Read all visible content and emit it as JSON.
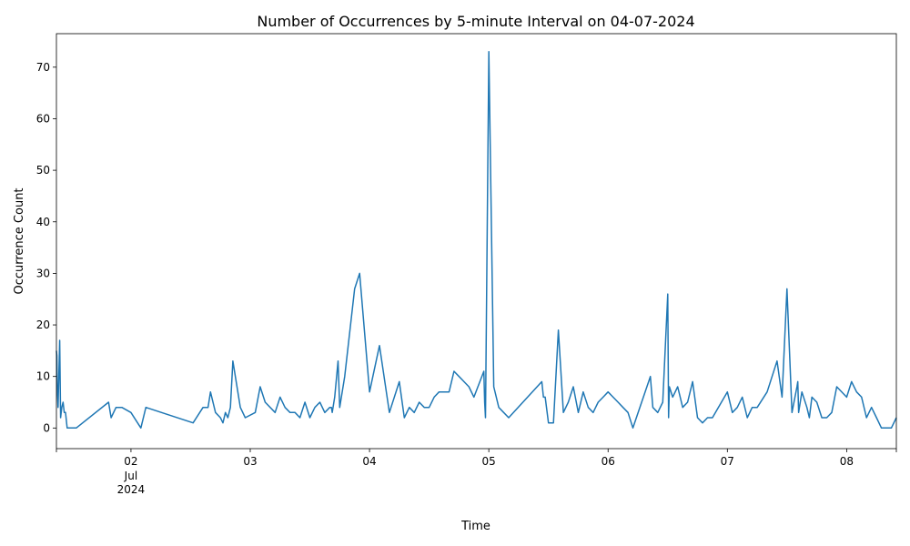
{
  "chart_data": {
    "type": "line",
    "title": "Number of Occurrences by 5-minute Interval on 04-07-2024",
    "xlabel": "Time",
    "ylabel": "Occurrence Count",
    "xlim": [
      "2024-07-01 09:00",
      "2024-07-08 10:00"
    ],
    "ylim": [
      -4,
      76.5
    ],
    "y_ticks": [
      0,
      10,
      20,
      30,
      40,
      50,
      60,
      70
    ],
    "x_ticks": [
      {
        "x": "2024-07-02",
        "label": "02",
        "sublabel": [
          "Jul",
          "2024"
        ]
      },
      {
        "x": "2024-07-03",
        "label": "03"
      },
      {
        "x": "2024-07-04",
        "label": "04"
      },
      {
        "x": "2024-07-05",
        "label": "05"
      },
      {
        "x": "2024-07-06",
        "label": "06"
      },
      {
        "x": "2024-07-07",
        "label": "07"
      },
      {
        "x": "2024-07-08",
        "label": "08"
      }
    ],
    "grid": false,
    "line_color": "#1f77b4",
    "series": [
      {
        "x": [
          "2024-07-01 09:00",
          "2024-07-01 09:05",
          "2024-07-01 09:10",
          "2024-07-01 09:20",
          "2024-07-01 09:40",
          "2024-07-01 09:50",
          "2024-07-01 10:05",
          "2024-07-01 10:20",
          "2024-07-01 10:35",
          "2024-07-01 10:50",
          "2024-07-01 11:10",
          "2024-07-01 11:30",
          "2024-07-01 12:00",
          "2024-07-01 12:30",
          "2024-07-01 13:00",
          "2024-07-01 19:30",
          "2024-07-01 20:00",
          "2024-07-01 21:00",
          "2024-07-01 22:10",
          "2024-07-02 00:00",
          "2024-07-02 02:00",
          "2024-07-02 03:00",
          "2024-07-02 12:30",
          "2024-07-02 14:30",
          "2024-07-02 15:30",
          "2024-07-02 16:00",
          "2024-07-02 17:00",
          "2024-07-02 18:00",
          "2024-07-02 18:30",
          "2024-07-02 19:00",
          "2024-07-02 19:30",
          "2024-07-02 20:00",
          "2024-07-02 20:30",
          "2024-07-02 22:00",
          "2024-07-02 23:00",
          "2024-07-03 01:00",
          "2024-07-03 02:00",
          "2024-07-03 03:00",
          "2024-07-03 05:00",
          "2024-07-03 06:00",
          "2024-07-03 07:00",
          "2024-07-03 08:00",
          "2024-07-03 09:00",
          "2024-07-03 10:00",
          "2024-07-03 11:00",
          "2024-07-03 12:00",
          "2024-07-03 13:00",
          "2024-07-03 14:00",
          "2024-07-03 15:00",
          "2024-07-03 16:00",
          "2024-07-03 16:10",
          "2024-07-03 16:20",
          "2024-07-03 16:30",
          "2024-07-03 17:00",
          "2024-07-03 17:40",
          "2024-07-03 18:00",
          "2024-07-03 19:00",
          "2024-07-03 21:00",
          "2024-07-03 22:00",
          "2024-07-04 00:00",
          "2024-07-04 02:00",
          "2024-07-04 04:00",
          "2024-07-04 06:00",
          "2024-07-04 07:00",
          "2024-07-04 08:00",
          "2024-07-04 09:00",
          "2024-07-04 10:00",
          "2024-07-04 11:00",
          "2024-07-04 12:00",
          "2024-07-04 13:00",
          "2024-07-04 14:00",
          "2024-07-04 16:00",
          "2024-07-04 17:00",
          "2024-07-04 18:00",
          "2024-07-04 20:00",
          "2024-07-04 21:00",
          "2024-07-04 23:00",
          "2024-07-04 23:10",
          "2024-07-04 23:20",
          "2024-07-05 00:00",
          "2024-07-05 01:00",
          "2024-07-05 02:00",
          "2024-07-05 03:00",
          "2024-07-05 04:00",
          "2024-07-05 10:40",
          "2024-07-05 11:00",
          "2024-07-05 11:20",
          "2024-07-05 12:00",
          "2024-07-05 13:00",
          "2024-07-05 14:00",
          "2024-07-05 15:00",
          "2024-07-05 16:00",
          "2024-07-05 17:00",
          "2024-07-05 18:00",
          "2024-07-05 19:00",
          "2024-07-05 20:00",
          "2024-07-05 21:00",
          "2024-07-05 22:00",
          "2024-07-05 23:00",
          "2024-07-06 00:00",
          "2024-07-06 01:00",
          "2024-07-06 02:00",
          "2024-07-06 03:00",
          "2024-07-06 04:00",
          "2024-07-06 05:00",
          "2024-07-06 08:30",
          "2024-07-06 09:00",
          "2024-07-06 10:00",
          "2024-07-06 11:00",
          "2024-07-06 12:00",
          "2024-07-06 12:10",
          "2024-07-06 12:20",
          "2024-07-06 13:00",
          "2024-07-06 14:00",
          "2024-07-06 15:00",
          "2024-07-06 16:00",
          "2024-07-06 17:00",
          "2024-07-06 18:00",
          "2024-07-06 19:00",
          "2024-07-06 20:00",
          "2024-07-06 21:00",
          "2024-07-07 00:00",
          "2024-07-07 01:00",
          "2024-07-07 02:00",
          "2024-07-07 03:00",
          "2024-07-07 04:00",
          "2024-07-07 05:00",
          "2024-07-07 06:00",
          "2024-07-07 08:00",
          "2024-07-07 10:00",
          "2024-07-07 11:00",
          "2024-07-07 12:00",
          "2024-07-07 13:00",
          "2024-07-07 14:00",
          "2024-07-07 14:10",
          "2024-07-07 14:20",
          "2024-07-07 15:00",
          "2024-07-07 16:00",
          "2024-07-07 16:30",
          "2024-07-07 17:00",
          "2024-07-07 18:00",
          "2024-07-07 19:00",
          "2024-07-07 20:00",
          "2024-07-07 21:00",
          "2024-07-07 22:00",
          "2024-07-08 00:00",
          "2024-07-08 01:00",
          "2024-07-08 02:00",
          "2024-07-08 03:00",
          "2024-07-08 04:00",
          "2024-07-08 05:00",
          "2024-07-08 06:00",
          "2024-07-08 07:00",
          "2024-07-08 08:00",
          "2024-07-08 09:00",
          "2024-07-08 10:00"
        ],
        "y": [
          15,
          14,
          8,
          4,
          17,
          2,
          4,
          5,
          3,
          3,
          0,
          0,
          0,
          0,
          0,
          5,
          2,
          4,
          4,
          3,
          0,
          4,
          1,
          4,
          4,
          7,
          3,
          2,
          1,
          3,
          2,
          4,
          13,
          4,
          2,
          3,
          8,
          5,
          3,
          6,
          4,
          3,
          3,
          2,
          5,
          2,
          4,
          5,
          3,
          4,
          4,
          4,
          3,
          6,
          13,
          4,
          10,
          27,
          30,
          7,
          16,
          3,
          9,
          2,
          4,
          3,
          5,
          4,
          4,
          6,
          7,
          7,
          11,
          10,
          8,
          6,
          11,
          5,
          2,
          73,
          8,
          4,
          3,
          2,
          9,
          6,
          6,
          1,
          1,
          19,
          3,
          5,
          8,
          3,
          7,
          4,
          3,
          5,
          6,
          7,
          6,
          5,
          4,
          3,
          0,
          10,
          4,
          3,
          5,
          26,
          2,
          8,
          6,
          8,
          4,
          5,
          9,
          2,
          1,
          2,
          2,
          7,
          3,
          4,
          6,
          2,
          4,
          4,
          7,
          13,
          6,
          27,
          3,
          8,
          9,
          3,
          7,
          4,
          2,
          6,
          5,
          2,
          2,
          3,
          8,
          6,
          9,
          7,
          6,
          2,
          4,
          2,
          0,
          0,
          0,
          2
        ]
      }
    ]
  }
}
